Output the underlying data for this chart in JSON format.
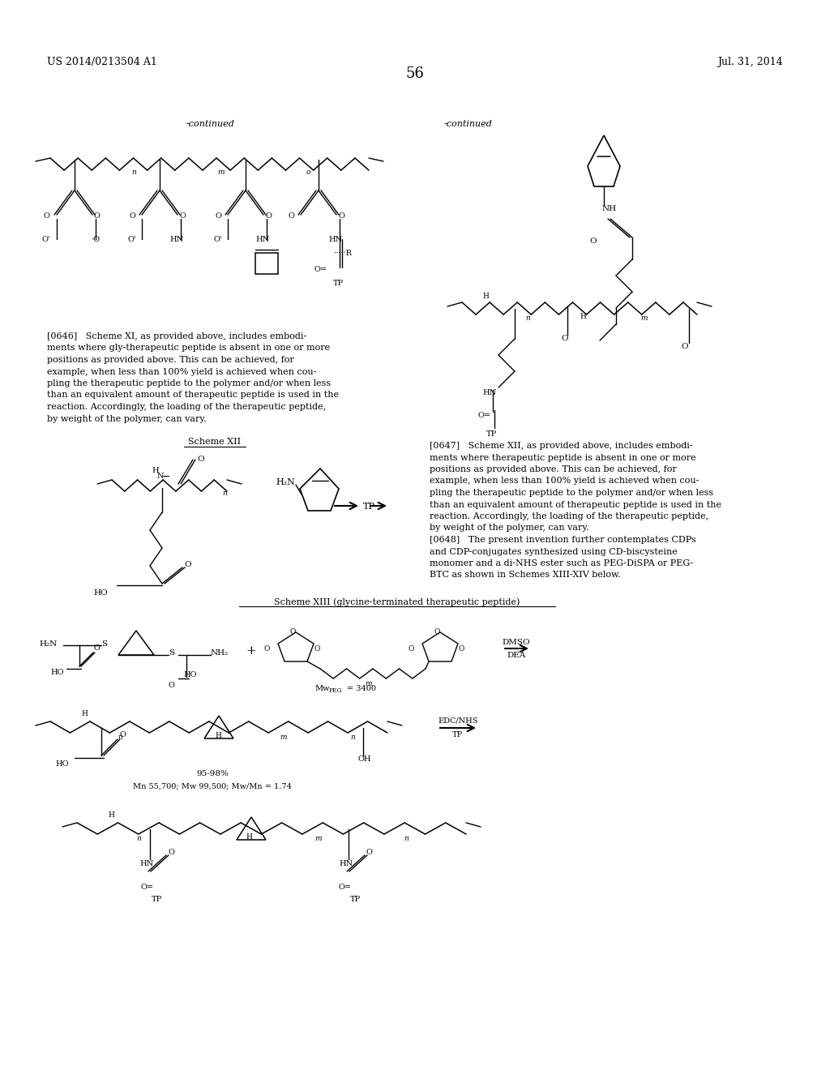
{
  "page_number": "56",
  "header_left": "US 2014/0213504 A1",
  "header_right": "Jul. 31, 2014",
  "background_color": "#ffffff",
  "text_color": "#000000",
  "figsize": [
    10.24,
    13.2
  ],
  "dpi": 100,
  "para0646": "[0646]   Scheme XI, as provided above, includes embodi-\nments where gly-therapeutic peptide is absent in one or more\npositions as provided above. This can be achieved, for\nexample, when less than 100% yield is achieved when cou-\npling the therapeutic peptide to the polymer and/or when less\nthan an equivalent amount of therapeutic peptide is used in the\nreaction. Accordingly, the loading of the therapeutic peptide,\nby weight of the polymer, can vary.",
  "para0647": "[0647]   Scheme XII, as provided above, includes embodi-\nments where therapeutic peptide is absent in one or more\npositions as provided above. This can be achieved, for\nexample, when less than 100% yield is achieved when cou-\npling the therapeutic peptide to the polymer and/or when less\nthan an equivalent amount of therapeutic peptide is used in the\nreaction. Accordingly, the loading of the therapeutic peptide,\nby weight of the polymer, can vary.\n[0648]   The present invention further contemplates CDPs\nand CDP-conjugates synthesized using CD-biscysteine\nmonomer and a di-NHS ester such as PEG-DiSPA or PEG-\nBTC as shown in Schemes XIII-XIV below."
}
